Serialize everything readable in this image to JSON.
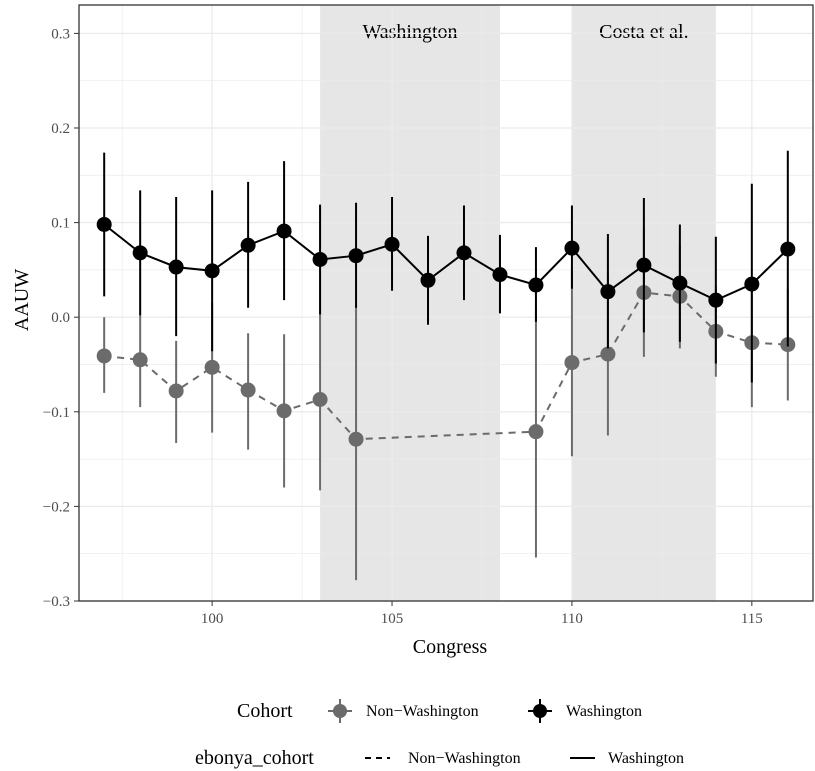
{
  "chart_data": {
    "type": "line",
    "xlabel": "Congress",
    "ylabel": "AAUW",
    "xlim": [
      96.3,
      116.7
    ],
    "ylim": [
      -0.3,
      0.33
    ],
    "x_ticks": [
      100,
      105,
      110,
      115
    ],
    "y_ticks": [
      -0.3,
      -0.2,
      -0.1,
      0.0,
      0.1,
      0.2,
      0.3
    ],
    "x_tick_labels": [
      "100",
      "105",
      "110",
      "115"
    ],
    "y_tick_labels": [
      "−0.3",
      "−0.2",
      "−0.1",
      "0.0",
      "0.1",
      "0.2",
      "0.3"
    ],
    "grid": true,
    "shaded_regions": [
      {
        "label": "Washington",
        "x_start": 103,
        "x_end": 108
      },
      {
        "label": "Costa et al.",
        "x_start": 110,
        "x_end": 114
      }
    ],
    "series": [
      {
        "name": "Non−Washington",
        "color": "#6b6b6b",
        "linestyle": "dashed",
        "points": [
          {
            "x": 97,
            "y": -0.041,
            "lo": -0.08,
            "hi": 0.0
          },
          {
            "x": 98,
            "y": -0.045,
            "lo": -0.095,
            "hi": 0.003
          },
          {
            "x": 99,
            "y": -0.078,
            "lo": -0.133,
            "hi": -0.025
          },
          {
            "x": 100,
            "y": -0.053,
            "lo": -0.122,
            "hi": 0.015
          },
          {
            "x": 101,
            "y": -0.077,
            "lo": -0.14,
            "hi": -0.017
          },
          {
            "x": 102,
            "y": -0.099,
            "lo": -0.18,
            "hi": -0.018
          },
          {
            "x": 103,
            "y": -0.087,
            "lo": -0.183,
            "hi": 0.005
          },
          {
            "x": 104,
            "y": -0.129,
            "lo": -0.278,
            "hi": 0.012
          },
          {
            "x": 109,
            "y": -0.121,
            "lo": -0.254,
            "hi": 0.008
          },
          {
            "x": 110,
            "y": -0.048,
            "lo": -0.147,
            "hi": 0.05
          },
          {
            "x": 111,
            "y": -0.039,
            "lo": -0.125,
            "hi": 0.046
          },
          {
            "x": 112,
            "y": 0.026,
            "lo": -0.042,
            "hi": 0.094
          },
          {
            "x": 113,
            "y": 0.022,
            "lo": -0.033,
            "hi": 0.076
          },
          {
            "x": 114,
            "y": -0.015,
            "lo": -0.063,
            "hi": 0.033
          },
          {
            "x": 115,
            "y": -0.027,
            "lo": -0.095,
            "hi": 0.04
          },
          {
            "x": 116,
            "y": -0.029,
            "lo": -0.088,
            "hi": 0.03
          }
        ]
      },
      {
        "name": "Washington",
        "color": "#000000",
        "linestyle": "solid",
        "points": [
          {
            "x": 97,
            "y": 0.098,
            "lo": 0.022,
            "hi": 0.174
          },
          {
            "x": 98,
            "y": 0.068,
            "lo": 0.002,
            "hi": 0.134
          },
          {
            "x": 99,
            "y": 0.053,
            "lo": -0.02,
            "hi": 0.127
          },
          {
            "x": 100,
            "y": 0.049,
            "lo": -0.036,
            "hi": 0.134
          },
          {
            "x": 101,
            "y": 0.076,
            "lo": 0.01,
            "hi": 0.143
          },
          {
            "x": 102,
            "y": 0.091,
            "lo": 0.018,
            "hi": 0.165
          },
          {
            "x": 103,
            "y": 0.061,
            "lo": 0.003,
            "hi": 0.119
          },
          {
            "x": 104,
            "y": 0.065,
            "lo": 0.01,
            "hi": 0.121
          },
          {
            "x": 105,
            "y": 0.077,
            "lo": 0.028,
            "hi": 0.127
          },
          {
            "x": 106,
            "y": 0.039,
            "lo": -0.008,
            "hi": 0.086
          },
          {
            "x": 107,
            "y": 0.068,
            "lo": 0.018,
            "hi": 0.118
          },
          {
            "x": 108,
            "y": 0.045,
            "lo": 0.004,
            "hi": 0.087
          },
          {
            "x": 109,
            "y": 0.034,
            "lo": -0.005,
            "hi": 0.074
          },
          {
            "x": 110,
            "y": 0.073,
            "lo": 0.03,
            "hi": 0.118
          },
          {
            "x": 111,
            "y": 0.027,
            "lo": -0.033,
            "hi": 0.088
          },
          {
            "x": 112,
            "y": 0.055,
            "lo": -0.016,
            "hi": 0.126
          },
          {
            "x": 113,
            "y": 0.036,
            "lo": -0.026,
            "hi": 0.098
          },
          {
            "x": 114,
            "y": 0.018,
            "lo": -0.049,
            "hi": 0.085
          },
          {
            "x": 115,
            "y": 0.035,
            "lo": -0.069,
            "hi": 0.141
          },
          {
            "x": 116,
            "y": 0.072,
            "lo": -0.031,
            "hi": 0.176
          }
        ]
      }
    ],
    "legend": {
      "placement": "bottom",
      "cohort_title": "Cohort",
      "cohort_entries": [
        "Non−Washington",
        "Washington"
      ],
      "linetype_title": "ebonya_cohort",
      "linetype_entries": [
        "Non−Washington",
        "Washington"
      ]
    }
  }
}
